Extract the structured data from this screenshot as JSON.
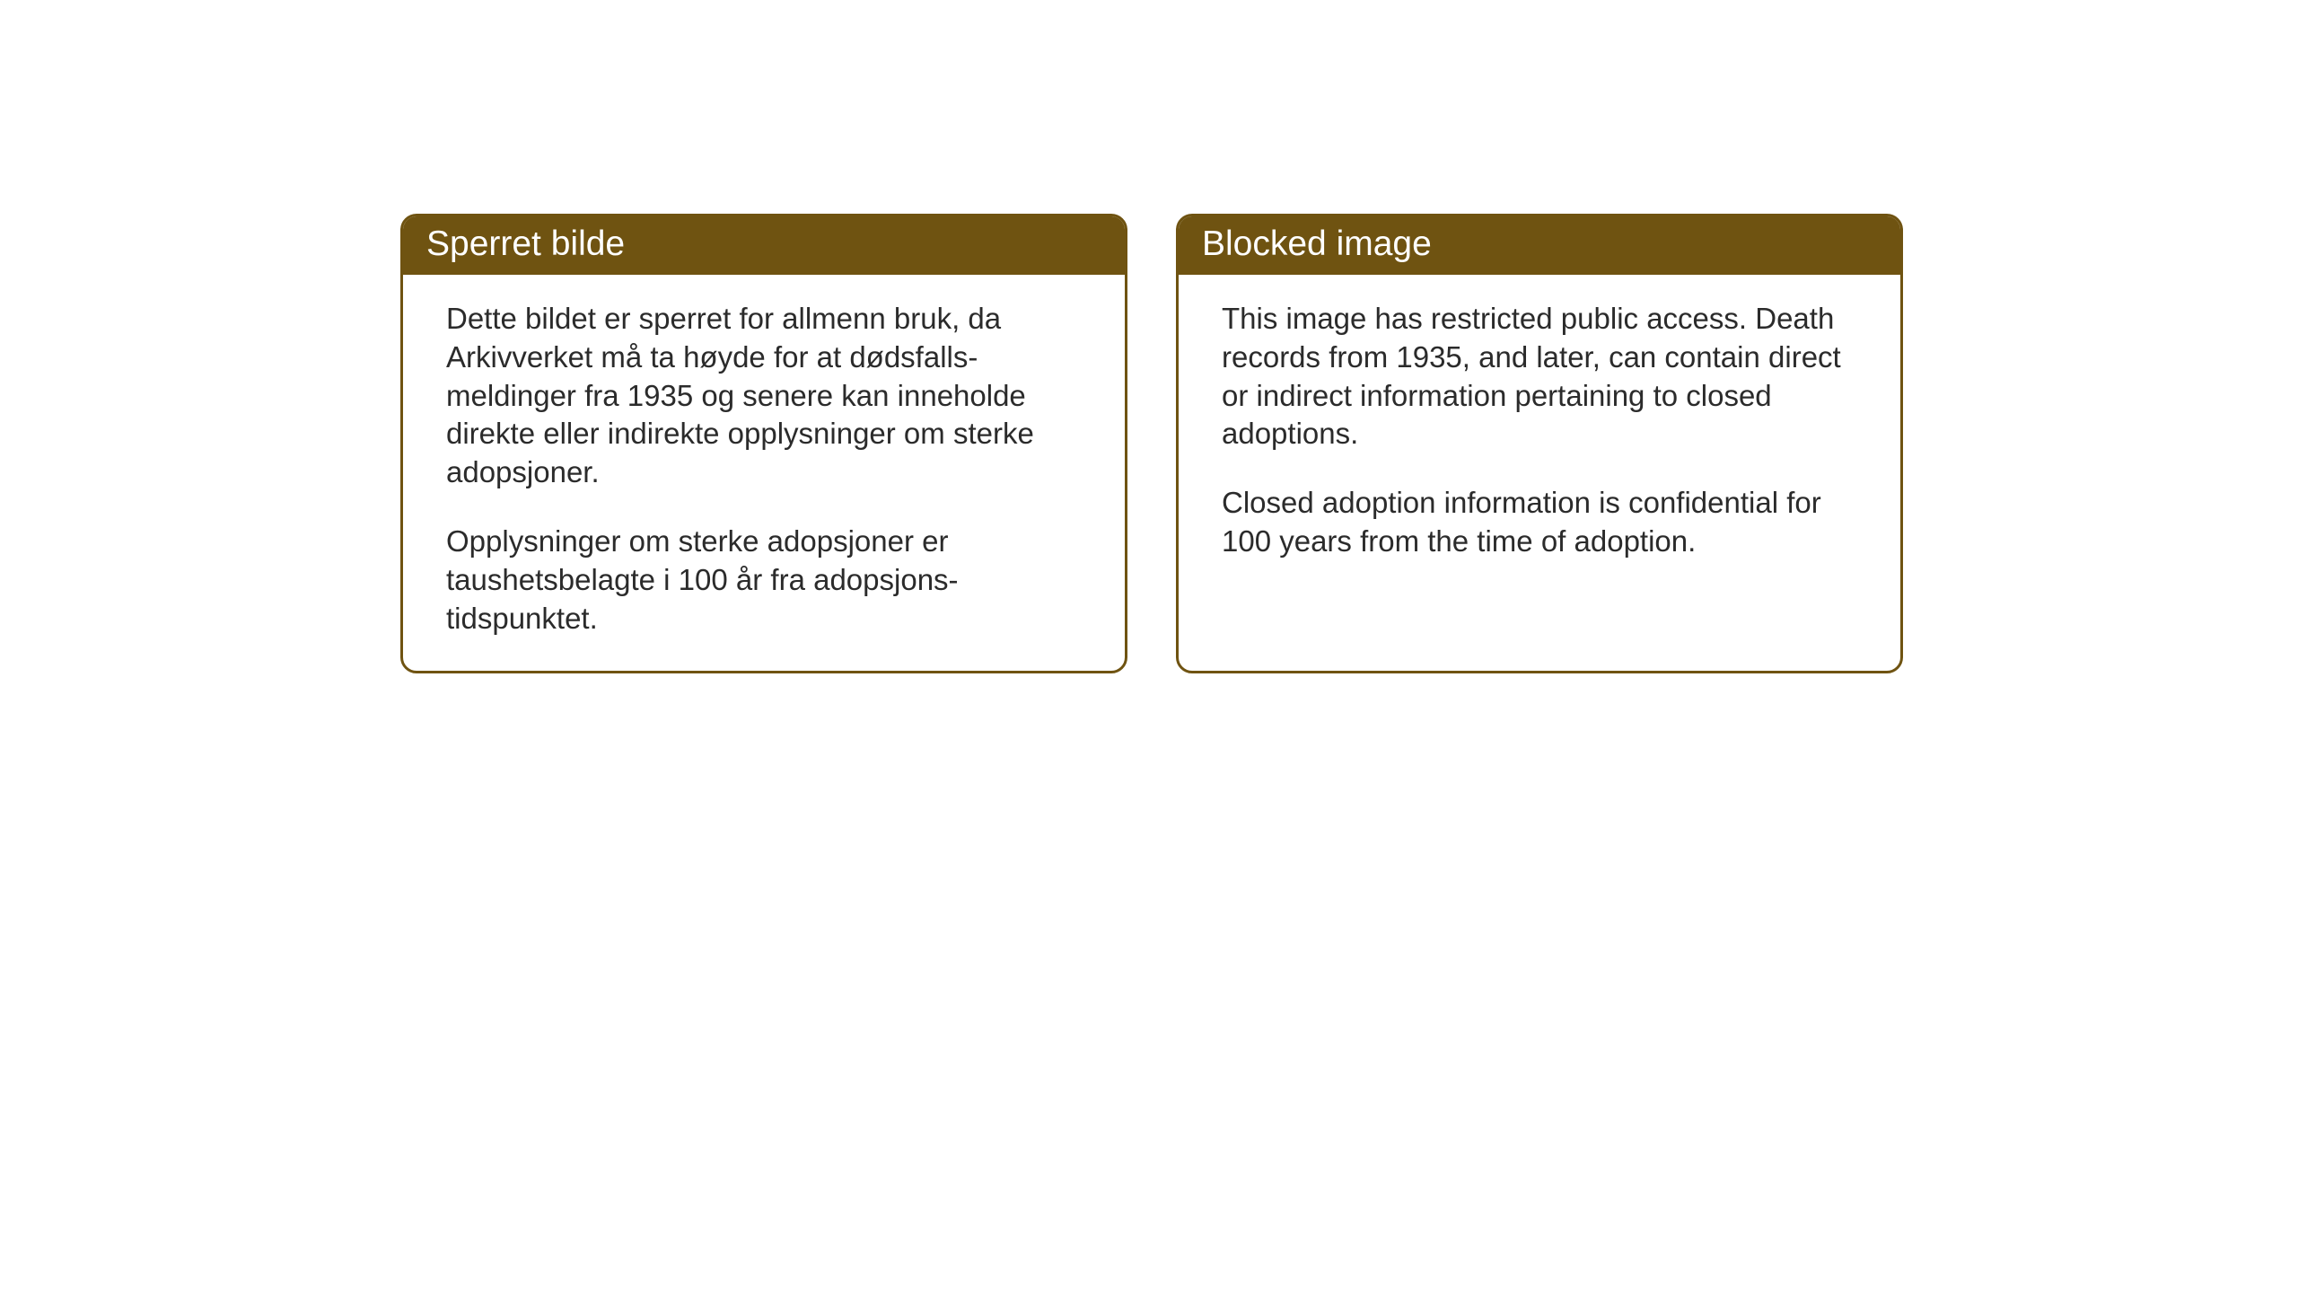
{
  "layout": {
    "background_color": "#ffffff",
    "card_border_color": "#6f5311",
    "card_header_bg": "#6f5311",
    "card_header_text_color": "#ffffff",
    "body_text_color": "#2b2b2b",
    "header_fontsize": 39,
    "body_fontsize": 33,
    "border_radius": 18,
    "border_width": 3
  },
  "cards": {
    "left": {
      "title": "Sperret bilde",
      "p1": "Dette bildet er sperret for allmenn bruk, da Arkivverket må ta høyde for at dødsfalls-meldinger fra 1935 og senere kan inneholde direkte eller indirekte opplysninger om sterke adopsjoner.",
      "p2": "Opplysninger om sterke adopsjoner er taushetsbelagte i 100 år fra adopsjons-tidspunktet."
    },
    "right": {
      "title": "Blocked image",
      "p1": "This image has restricted public access. Death records from 1935, and later, can contain direct or indirect information pertaining to closed adoptions.",
      "p2": "Closed adoption information is confidential for 100 years from the time of adoption."
    }
  }
}
